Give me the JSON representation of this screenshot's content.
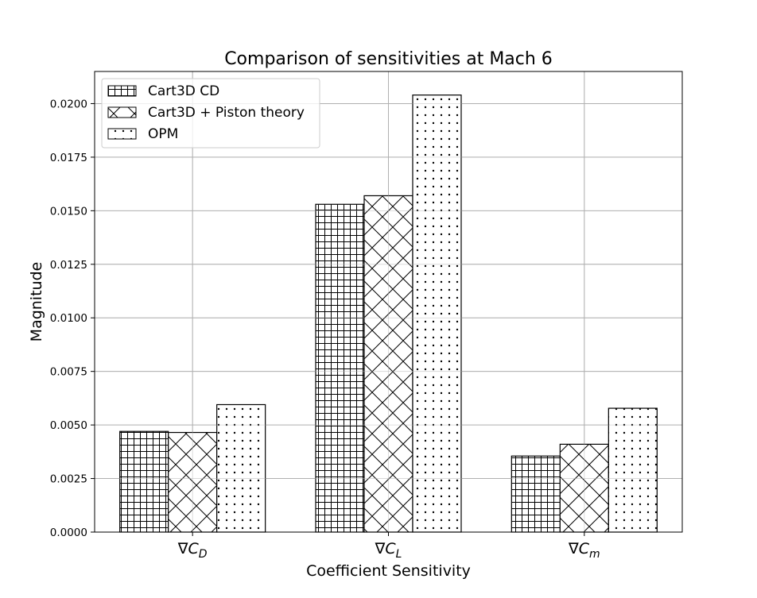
{
  "chart_data": {
    "type": "bar",
    "title": "Comparison of sensitivities at Mach 6",
    "xlabel": "Coefficient Sensitivity",
    "ylabel": "Magnitude",
    "ylim": [
      0,
      0.0215
    ],
    "yticks": [
      0,
      0.0025,
      0.005,
      0.0075,
      0.01,
      0.0125,
      0.015,
      0.0175,
      0.02
    ],
    "ytick_labels": [
      "0.0000",
      "0.0025",
      "0.0050",
      "0.0075",
      "0.0100",
      "0.0125",
      "0.0150",
      "0.0175",
      "0.0200"
    ],
    "categories": [
      {
        "sym": "∇C",
        "sub": "D"
      },
      {
        "sym": "∇C",
        "sub": "L"
      },
      {
        "sym": "∇C",
        "sub": "m"
      }
    ],
    "series": [
      {
        "name": "Cart3D CD",
        "pattern": "grid",
        "values": [
          0.0047,
          0.0153,
          0.00355
        ]
      },
      {
        "name": "Cart3D + Piston theory",
        "pattern": "crosshatch",
        "values": [
          0.00465,
          0.0157,
          0.0041
        ]
      },
      {
        "name": "OPM",
        "pattern": "dots",
        "values": [
          0.00595,
          0.0204,
          0.00578
        ]
      }
    ],
    "grid": true,
    "legend_position": "top-left",
    "colors": {
      "bar_fill": "#ffffff",
      "bar_edge": "#000000",
      "grid": "#b0b0b0"
    }
  }
}
